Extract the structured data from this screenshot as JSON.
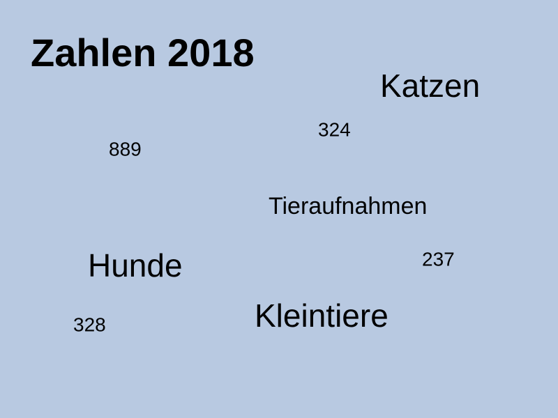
{
  "title": "Zahlen 2018",
  "words": [
    "Katzen",
    "Tieraufnahmen",
    "Hunde",
    "Kleintiere"
  ],
  "numbers": [
    324,
    889,
    237,
    328
  ]
}
